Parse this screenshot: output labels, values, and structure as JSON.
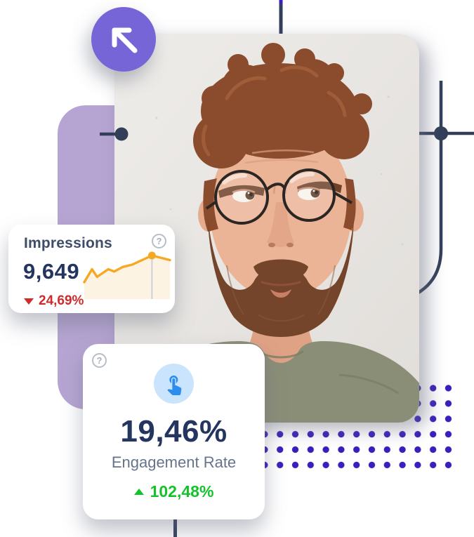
{
  "cards": {
    "impressions": {
      "title": "Impressions",
      "value": "9,649",
      "change": "24,69%",
      "change_direction": "down",
      "help_glyph": "?"
    },
    "engagement": {
      "value": "19,46%",
      "label": "Engagement Rate",
      "change": "102,48%",
      "change_direction": "up",
      "help_glyph": "?",
      "icon": "tap-finger-icon"
    }
  },
  "decor": {
    "arrow_circle_icon": "arrow-up-left",
    "photo_description": "man with round glasses, curly auburn hair and beard, looking up to the side, olive green t-shirt"
  },
  "chart_data": {
    "type": "line",
    "title": "Impressions sparkline",
    "x_percent": [
      0,
      9,
      15,
      28,
      35,
      45,
      56,
      79,
      100
    ],
    "series": [
      {
        "name": "Impressions",
        "values": [
          20,
          37,
          27,
          37,
          34,
          40,
          43,
          55,
          49
        ]
      }
    ],
    "highlight_index": 7,
    "axes": "hidden",
    "legend": "none"
  },
  "colors": {
    "purple": "#7565D6",
    "lavender": "#B6A5D2",
    "navy": "#24355F",
    "title": "#3F4D69",
    "muted": "#65748B",
    "red": "#CF2B2B",
    "green": "#14C32B",
    "orange": "#F7A823",
    "orange_fill": "#FCF3E2",
    "blue": "#2B8DEF",
    "blue_light": "#C9E4FC",
    "line": "#333F59",
    "dots": "#3B1FBD",
    "help": "#B7BEC9"
  }
}
